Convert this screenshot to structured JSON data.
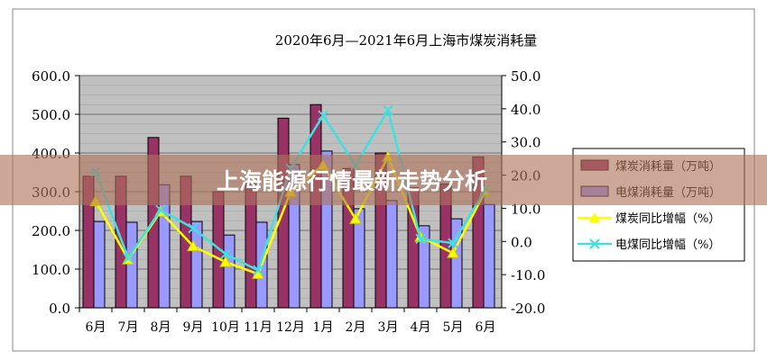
{
  "chart_data": {
    "type": "bar+line",
    "title": "2020年6月—2021年6月上海市煤炭消耗量",
    "categories": [
      "6月",
      "7月",
      "8月",
      "9月",
      "10月",
      "11月",
      "12月",
      "1月",
      "2月",
      "3月",
      "4月",
      "5月",
      "6月"
    ],
    "y_left": {
      "ylim": [
        0,
        600
      ],
      "ticks": [
        "0.0",
        "100.0",
        "200.0",
        "300.0",
        "400.0",
        "500.0",
        "600.0"
      ]
    },
    "y_right": {
      "ylim": [
        -20,
        50
      ],
      "ticks": [
        "-20.0",
        "-10.0",
        "0.0",
        "10.0",
        "20.0",
        "30.0",
        "40.0",
        "50.0"
      ]
    },
    "grid": true,
    "legend_placement": "right",
    "series": [
      {
        "name": "煤炭消耗量（万吨）",
        "kind": "bar",
        "axis": "left",
        "color": "#993366",
        "values": [
          340,
          340,
          440,
          340,
          300,
          325,
          490,
          525,
          360,
          400,
          310,
          320,
          390
        ]
      },
      {
        "name": "电煤消耗量（万吨）",
        "kind": "bar",
        "axis": "left",
        "color": "#9999FF",
        "values": [
          223,
          221,
          318,
          223,
          188,
          221,
          370,
          405,
          256,
          277,
          212,
          230,
          267
        ]
      },
      {
        "name": "煤炭同比增幅（%）",
        "kind": "line",
        "axis": "right",
        "color": "#FFFF00",
        "marker": "triangle",
        "values": [
          12.2,
          -5.4,
          9.0,
          -1.4,
          -6.2,
          -9.8,
          14.9,
          23.0,
          6.8,
          25.5,
          1.4,
          -3.5,
          15.2
        ]
      },
      {
        "name": "电煤同比增幅（%）",
        "kind": "line",
        "axis": "right",
        "color": "#40E0E0",
        "marker": "x",
        "values": [
          21.0,
          -5.0,
          9.5,
          4.0,
          -3.8,
          -8.7,
          22.0,
          38.0,
          23.0,
          39.6,
          0.8,
          -0.5,
          15.7
        ]
      }
    ]
  },
  "overlay": {
    "headline": "上海能源行情最新走势分析",
    "color": "#AF735A"
  }
}
